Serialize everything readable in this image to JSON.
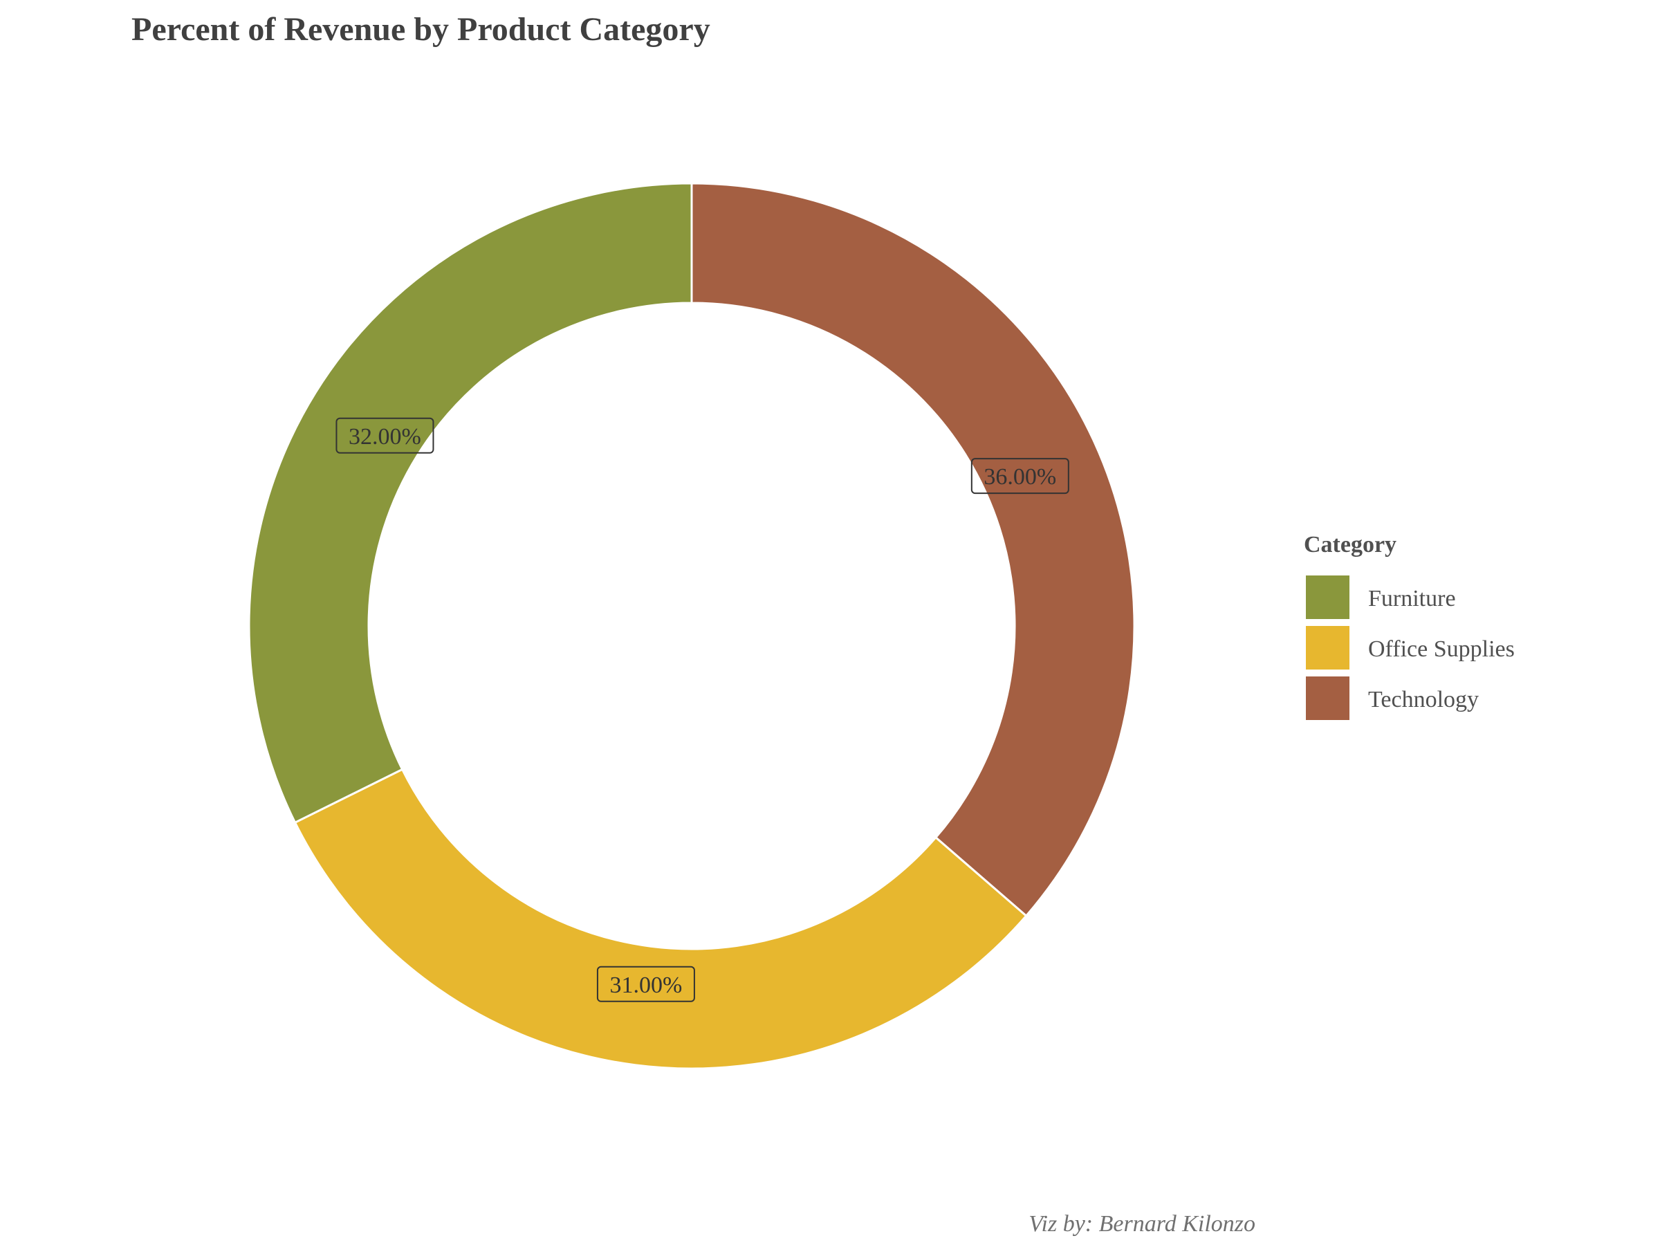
{
  "chart_data": {
    "type": "pie",
    "title": "Percent of Revenue by Product Category",
    "style": "donut",
    "categories": [
      "Furniture",
      "Office Supplies",
      "Technology"
    ],
    "values": [
      32,
      31,
      36
    ],
    "data_labels": [
      "32.00%",
      "31.00%",
      "36.00%"
    ],
    "colors": [
      "#8a973c",
      "#e7b72f",
      "#a45f42"
    ],
    "legend": {
      "title": "Category",
      "placement": "right",
      "items": [
        "Furniture",
        "Office Supplies",
        "Technology"
      ]
    },
    "caption": "Viz by: Bernard Kilonzo"
  }
}
